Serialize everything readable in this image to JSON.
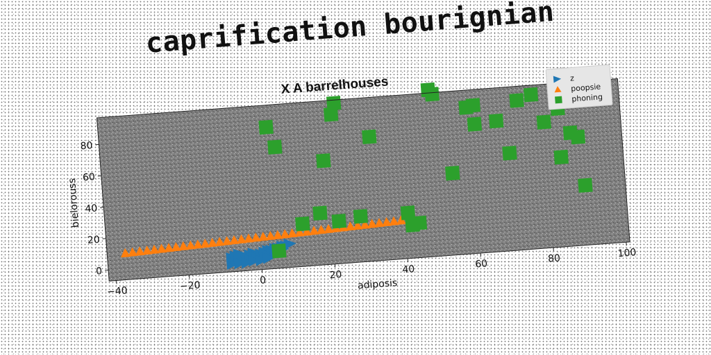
{
  "page": {
    "title": "caprification bourignian"
  },
  "chart_data": {
    "type": "scatter",
    "title": "X A barrelhouses",
    "xlabel": "adiposis",
    "ylabel": "bielorouss",
    "xlim": [
      -42,
      101
    ],
    "ylim": [
      -7,
      97
    ],
    "xticks": [
      -40,
      -20,
      0,
      20,
      40,
      60,
      80,
      100
    ],
    "yticks": [
      0,
      20,
      40,
      60,
      80
    ],
    "grid": false,
    "legend_position": "top-right",
    "plot_background": "#808080",
    "series": [
      {
        "name": "z",
        "marker": "triangle-right",
        "color": "#1f77b4",
        "points": [
          [
            -8,
            -2
          ],
          [
            -7,
            -1
          ],
          [
            -6,
            0
          ],
          [
            -5,
            1
          ],
          [
            -4,
            2
          ],
          [
            -3,
            3
          ],
          [
            -2,
            4
          ],
          [
            -1,
            2
          ],
          [
            0,
            3
          ],
          [
            1,
            4
          ],
          [
            2,
            5
          ],
          [
            3,
            5
          ],
          [
            4,
            6
          ],
          [
            5,
            6
          ],
          [
            6,
            7
          ],
          [
            7,
            7
          ],
          [
            8,
            8
          ],
          [
            -8,
            2
          ],
          [
            -7,
            3
          ],
          [
            -6,
            4
          ],
          [
            -5,
            3
          ],
          [
            -4,
            1
          ],
          [
            -3,
            0
          ],
          [
            -2,
            0
          ],
          [
            -1,
            1
          ],
          [
            0,
            0
          ],
          [
            1,
            1
          ],
          [
            2,
            2
          ],
          [
            3,
            3
          ],
          [
            4,
            3
          ],
          [
            5,
            4
          ],
          [
            6,
            5
          ],
          [
            -6,
            -2
          ],
          [
            -4,
            -2
          ],
          [
            -2,
            -1
          ],
          [
            0,
            -1
          ],
          [
            2,
            0
          ]
        ]
      },
      {
        "name": "poopsie",
        "marker": "triangle-up",
        "color": "#ff7f0e",
        "points": [
          [
            -37,
            10
          ],
          [
            -35,
            10.2
          ],
          [
            -33,
            10.4
          ],
          [
            -31,
            10.6
          ],
          [
            -29,
            10.8
          ],
          [
            -27,
            11
          ],
          [
            -25,
            11.2
          ],
          [
            -23,
            11.4
          ],
          [
            -21,
            11.6
          ],
          [
            -19,
            11.8
          ],
          [
            -17,
            12
          ],
          [
            -15,
            12.2
          ],
          [
            -13,
            12.4
          ],
          [
            -11,
            12.6
          ],
          [
            -9,
            12.8
          ],
          [
            -7,
            13
          ],
          [
            -5,
            13.2
          ],
          [
            -3,
            13.4
          ],
          [
            -1,
            13.6
          ],
          [
            1,
            13.8
          ],
          [
            3,
            14
          ],
          [
            5,
            14.2
          ],
          [
            7,
            14.4
          ],
          [
            9,
            14.6
          ],
          [
            11,
            14.8
          ],
          [
            13,
            15
          ],
          [
            15,
            15.2
          ],
          [
            17,
            15.4
          ],
          [
            19,
            15.6
          ],
          [
            21,
            15.8
          ],
          [
            23,
            16
          ],
          [
            25,
            16.2
          ],
          [
            27,
            16.4
          ],
          [
            29,
            16.6
          ],
          [
            31,
            16.8
          ],
          [
            33,
            17
          ],
          [
            35,
            17.2
          ],
          [
            37,
            17.4
          ],
          [
            39,
            17.6
          ]
        ]
      },
      {
        "name": "phoning",
        "marker": "square",
        "color": "#2ca02c",
        "points": [
          [
            5,
            4
          ],
          [
            12,
            20
          ],
          [
            17,
            26
          ],
          [
            22,
            20
          ],
          [
            28,
            22
          ],
          [
            41,
            22
          ],
          [
            42,
            14
          ],
          [
            44,
            15
          ],
          [
            4,
            83
          ],
          [
            6,
            70
          ],
          [
            19,
            59
          ],
          [
            22,
            88
          ],
          [
            23,
            95
          ],
          [
            32,
            72
          ],
          [
            49,
            99
          ],
          [
            50,
            96
          ],
          [
            54,
            45
          ],
          [
            59,
            86
          ],
          [
            61,
            87
          ],
          [
            61,
            75
          ],
          [
            67,
            76
          ],
          [
            70,
            55
          ],
          [
            73,
            88
          ],
          [
            77,
            91
          ],
          [
            80,
            73
          ],
          [
            84,
            81
          ],
          [
            84,
            50
          ],
          [
            87,
            65
          ],
          [
            89,
            62
          ],
          [
            90,
            31
          ]
        ]
      }
    ]
  }
}
